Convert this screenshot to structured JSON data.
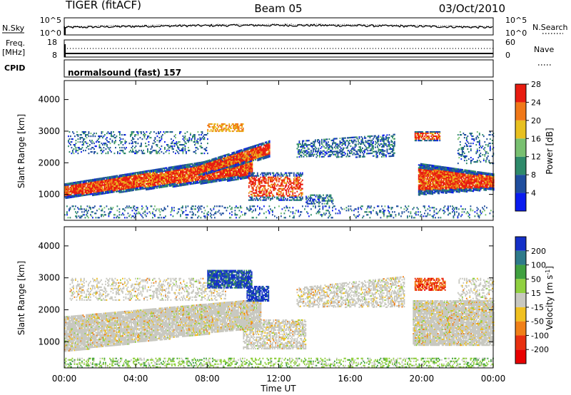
{
  "header": {
    "title_left": "TIGER (fitACF)",
    "title_center": "Beam 05",
    "title_right": "03/Oct/2010"
  },
  "strips": {
    "nsky_label": "N.Sky",
    "nsky_ticks": [
      "10^5",
      "10^0"
    ],
    "nsearch_label": "N.Search",
    "nsearch_ticks": [
      "10^5",
      "10^0"
    ],
    "freq_label": "Freq.",
    "freq_unit": "[MHz]",
    "freq_ticks": [
      "18",
      "8"
    ],
    "nave_label": "Nave",
    "nave_ticks": [
      "60",
      "0"
    ],
    "cpid_label": "CPID",
    "cpid_value": "normalsound (fast) 157"
  },
  "chart_data": [
    {
      "type": "heatmap",
      "panel": "power",
      "ylabel": "Slant Range [km]",
      "ylim": [
        180,
        4600
      ],
      "yticks": [
        "1000",
        "2000",
        "3000",
        "4000"
      ],
      "colorbar_label": "Power [dB]",
      "colorbar_ticks": [
        "4",
        "8",
        "12",
        "16",
        "20",
        "24",
        "28"
      ],
      "colors": [
        "#0a1cf0",
        "#1f4e9e",
        "#2e8a6a",
        "#78c070",
        "#e8c020",
        "#f07818",
        "#e81c10"
      ]
    },
    {
      "type": "heatmap",
      "panel": "velocity",
      "ylabel": "Slant Range [km]",
      "ylim": [
        180,
        4600
      ],
      "yticks": [
        "1000",
        "2000",
        "3000",
        "4000"
      ],
      "colorbar_label": "Velocity [m s^-1]",
      "colorbar_ticks": [
        "200",
        "100",
        "50",
        "15",
        "-15",
        "-50",
        "-100",
        "-200"
      ],
      "colors": [
        "#1430c8",
        "#2e7a8a",
        "#40a040",
        "#90d040",
        "#c8c8c0",
        "#f0c020",
        "#f08018",
        "#e83010",
        "#e80000"
      ]
    }
  ],
  "x_axis": {
    "label": "Time UT",
    "ticks": [
      "00:00",
      "04:00",
      "08:00",
      "12:00",
      "16:00",
      "20:00",
      "00:00"
    ]
  }
}
